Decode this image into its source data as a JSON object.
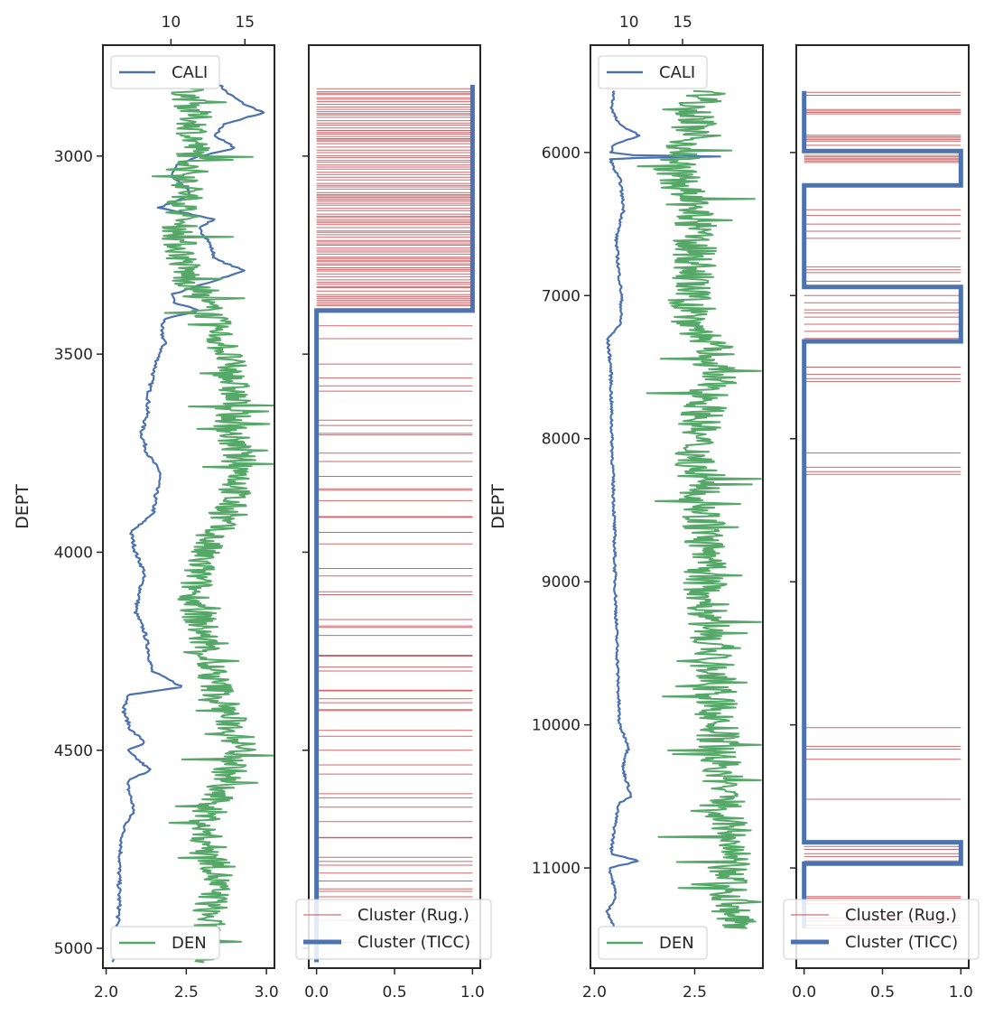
{
  "chart_data": [
    {
      "panel": "left-well-logs",
      "type": "line",
      "ylabel": "DEPT",
      "ylim": [
        5050,
        2720
      ],
      "yticks": [
        3000,
        3500,
        4000,
        4500,
        5000
      ],
      "ytick_labels": [
        "3000",
        "3500",
        "4000",
        "4500",
        "5000"
      ],
      "x_bottom": {
        "range": [
          1.98,
          3.05
        ],
        "ticks": [
          2.0,
          2.5,
          3.0
        ],
        "tick_labels": [
          "2.0",
          "2.5",
          "3.0"
        ]
      },
      "x_top": {
        "range": [
          5.4,
          17.0
        ],
        "ticks": [
          10,
          15
        ],
        "tick_labels": [
          "10",
          "15"
        ]
      },
      "depth_range": [
        2820,
        5035
      ],
      "series": [
        {
          "name": "CALI",
          "axis": "top",
          "color": "#4c72b0",
          "legend": "upper left",
          "profile": [
            [
              2820,
              13.3
            ],
            [
              2840,
              13.8
            ],
            [
              2870,
              15.0
            ],
            [
              2890,
              16.3
            ],
            [
              2920,
              13.5
            ],
            [
              2950,
              13.0
            ],
            [
              2980,
              14.4
            ],
            [
              3000,
              12.0
            ],
            [
              3020,
              10.5
            ],
            [
              3050,
              10.0
            ],
            [
              3080,
              11.0
            ],
            [
              3100,
              11.3
            ],
            [
              3130,
              9.2
            ],
            [
              3160,
              13.0
            ],
            [
              3180,
              11.8
            ],
            [
              3210,
              12.5
            ],
            [
              3260,
              13.0
            ],
            [
              3290,
              15.0
            ],
            [
              3320,
              12.5
            ],
            [
              3350,
              10.0
            ],
            [
              3370,
              10.2
            ],
            [
              3390,
              12.0
            ],
            [
              3410,
              9.6
            ],
            [
              3440,
              9.3
            ],
            [
              3470,
              9.6
            ],
            [
              3500,
              9.2
            ],
            [
              3550,
              8.8
            ],
            [
              3600,
              8.5
            ],
            [
              3650,
              8.4
            ],
            [
              3700,
              8.0
            ],
            [
              3750,
              8.4
            ],
            [
              3800,
              9.3
            ],
            [
              3850,
              9.0
            ],
            [
              3900,
              8.8
            ],
            [
              3950,
              7.3
            ],
            [
              4000,
              7.6
            ],
            [
              4050,
              8.2
            ],
            [
              4100,
              7.9
            ],
            [
              4150,
              7.6
            ],
            [
              4200,
              8.2
            ],
            [
              4250,
              8.5
            ],
            [
              4300,
              8.7
            ],
            [
              4340,
              10.8
            ],
            [
              4360,
              7.2
            ],
            [
              4400,
              6.8
            ],
            [
              4450,
              7.3
            ],
            [
              4480,
              8.3
            ],
            [
              4500,
              7.0
            ],
            [
              4550,
              8.6
            ],
            [
              4580,
              7.0
            ],
            [
              4650,
              7.5
            ],
            [
              4700,
              6.8
            ],
            [
              4750,
              6.6
            ],
            [
              4800,
              6.5
            ],
            [
              4900,
              6.5
            ],
            [
              5000,
              6.2
            ],
            [
              5030,
              6.1
            ]
          ]
        },
        {
          "name": "DEN",
          "axis": "bottom",
          "color": "#55a868",
          "legend": "lower left",
          "profile": [
            [
              2820,
              2.5
            ],
            [
              2900,
              2.55
            ],
            [
              3000,
              2.55
            ],
            [
              3100,
              2.5
            ],
            [
              3200,
              2.45
            ],
            [
              3300,
              2.5
            ],
            [
              3400,
              2.65
            ],
            [
              3500,
              2.75
            ],
            [
              3600,
              2.8
            ],
            [
              3700,
              2.78
            ],
            [
              3800,
              2.85
            ],
            [
              3900,
              2.75
            ],
            [
              4000,
              2.6
            ],
            [
              4100,
              2.55
            ],
            [
              4200,
              2.6
            ],
            [
              4300,
              2.65
            ],
            [
              4400,
              2.75
            ],
            [
              4500,
              2.85
            ],
            [
              4600,
              2.7
            ],
            [
              4700,
              2.6
            ],
            [
              4800,
              2.7
            ],
            [
              4900,
              2.65
            ],
            [
              5000,
              2.6
            ],
            [
              5035,
              2.55
            ]
          ]
        }
      ]
    },
    {
      "panel": "left-clusters",
      "type": "line",
      "ylim": [
        5050,
        2720
      ],
      "x_bottom": {
        "range": [
          -0.05,
          1.05
        ],
        "ticks": [
          0.0,
          0.5,
          1.0
        ],
        "tick_labels": [
          "0.0",
          "0.5",
          "1.0"
        ]
      },
      "series": [
        {
          "name": "Cluster (Rug.)",
          "color": "#c44e52",
          "style": "thin horizontal spikes 0 to 1",
          "bands": [
            [
              2830,
              3390,
              0.25
            ],
            [
              3390,
              5035,
              0.7
            ]
          ],
          "spikes": [
            3560,
            3580,
            3680,
            3700,
            3750,
            3840,
            3870,
            3910,
            3950,
            4060,
            4100,
            4170,
            4190,
            4210,
            4260,
            4290,
            4300,
            4350,
            4370,
            4380,
            4400,
            4450,
            4500,
            4560,
            4620,
            4680,
            4720,
            4770,
            4790,
            4810,
            4830,
            4850,
            4870
          ]
        },
        {
          "name": "Cluster (TICC)",
          "color": "#4c72b0",
          "style": "thick step",
          "steps": [
            [
              2820,
              1
            ],
            [
              3390,
              0
            ],
            [
              5035,
              0
            ]
          ]
        }
      ],
      "legend": "lower right"
    },
    {
      "panel": "right-well-logs",
      "type": "line",
      "ylabel": "DEPT",
      "ylim": [
        11700,
        5250
      ],
      "yticks": [
        6000,
        7000,
        8000,
        9000,
        10000,
        11000
      ],
      "ytick_labels": [
        "6000",
        "7000",
        "8000",
        "9000",
        "10000",
        "11000"
      ],
      "x_bottom": {
        "range": [
          1.98,
          2.84
        ],
        "ticks": [
          2.0,
          2.5
        ],
        "tick_labels": [
          "2.0",
          "2.5"
        ]
      },
      "x_top": {
        "range": [
          6.4,
          22.5
        ],
        "ticks": [
          10,
          15
        ],
        "tick_labels": [
          "10",
          "15"
        ]
      },
      "depth_range": [
        5570,
        11420
      ],
      "series": [
        {
          "name": "CALI",
          "axis": "top",
          "color": "#4c72b0",
          "legend": "upper left",
          "profile": [
            [
              5570,
              8.6
            ],
            [
              5700,
              8.4
            ],
            [
              5800,
              9.0
            ],
            [
              5880,
              11.0
            ],
            [
              5950,
              8.5
            ],
            [
              6000,
              8.3
            ],
            [
              6020,
              10.5
            ],
            [
              6030,
              20.2
            ],
            [
              6040,
              8.3
            ],
            [
              6100,
              8.5
            ],
            [
              6200,
              9.2
            ],
            [
              6400,
              9.5
            ],
            [
              6600,
              8.8
            ],
            [
              6800,
              9.0
            ],
            [
              7000,
              9.3
            ],
            [
              7200,
              9.2
            ],
            [
              7300,
              8.0
            ],
            [
              7500,
              8.3
            ],
            [
              8000,
              8.4
            ],
            [
              8500,
              8.6
            ],
            [
              9000,
              8.7
            ],
            [
              9500,
              8.9
            ],
            [
              10000,
              9.1
            ],
            [
              10150,
              10.0
            ],
            [
              10300,
              9.4
            ],
            [
              10500,
              10.2
            ],
            [
              10550,
              9.0
            ],
            [
              10800,
              8.5
            ],
            [
              10900,
              8.3
            ],
            [
              10950,
              11.0
            ],
            [
              11000,
              8.2
            ],
            [
              11200,
              8.8
            ],
            [
              11300,
              8.0
            ],
            [
              11420,
              8.6
            ]
          ]
        },
        {
          "name": "DEN",
          "axis": "bottom",
          "color": "#55a868",
          "legend": "lower left",
          "profile": [
            [
              5570,
              2.55
            ],
            [
              5800,
              2.5
            ],
            [
              6000,
              2.45
            ],
            [
              6100,
              2.4
            ],
            [
              6300,
              2.45
            ],
            [
              6500,
              2.5
            ],
            [
              6800,
              2.5
            ],
            [
              7000,
              2.47
            ],
            [
              7200,
              2.5
            ],
            [
              7400,
              2.6
            ],
            [
              7600,
              2.6
            ],
            [
              7800,
              2.55
            ],
            [
              8000,
              2.5
            ],
            [
              8300,
              2.52
            ],
            [
              8600,
              2.55
            ],
            [
              9000,
              2.55
            ],
            [
              9400,
              2.58
            ],
            [
              9800,
              2.6
            ],
            [
              10200,
              2.62
            ],
            [
              10500,
              2.65
            ],
            [
              10800,
              2.68
            ],
            [
              11000,
              2.66
            ],
            [
              11200,
              2.68
            ],
            [
              11420,
              2.7
            ]
          ]
        }
      ]
    },
    {
      "panel": "right-clusters",
      "type": "line",
      "ylim": [
        11700,
        5250
      ],
      "x_bottom": {
        "range": [
          -0.05,
          1.05
        ],
        "ticks": [
          0.0,
          0.5,
          1.0
        ],
        "tick_labels": [
          "0.0",
          "0.5",
          "1.0"
        ]
      },
      "series": [
        {
          "name": "Cluster (Rug.)",
          "color": "#c44e52",
          "style": "thin horizontal spikes 0 to 1",
          "spikes": [
            5580,
            5600,
            5700,
            5710,
            5720,
            5730,
            5880,
            5890,
            5900,
            5910,
            5920,
            5950,
            6020,
            6030,
            6040,
            6050,
            6060,
            6070,
            6400,
            6440,
            6500,
            6550,
            6600,
            6800,
            6820,
            6840,
            6900,
            7000,
            7050,
            7100,
            7120,
            7150,
            7200,
            7250,
            7300,
            7500,
            7550,
            7580,
            7600,
            8100,
            8200,
            8230,
            8250,
            10020,
            10150,
            10170,
            10240,
            10520,
            10850,
            10870,
            10900,
            10920,
            10950,
            11200,
            11210,
            11230,
            11250,
            11350,
            11370,
            11400,
            11420
          ]
        },
        {
          "name": "Cluster (TICC)",
          "color": "#4c72b0",
          "style": "thick step",
          "steps": [
            [
              5570,
              0
            ],
            [
              5990,
              1
            ],
            [
              6230,
              0
            ],
            [
              6940,
              1
            ],
            [
              7320,
              0
            ],
            [
              10820,
              1
            ],
            [
              10970,
              0
            ],
            [
              11420,
              0
            ]
          ]
        }
      ],
      "legend": "lower right"
    }
  ],
  "legends": {
    "left_top": "CALI",
    "left_bottom": "DEN",
    "left_cluster_rug": "Cluster (Rug.)",
    "left_cluster_ticc": "Cluster (TICC)",
    "right_top": "CALI",
    "right_bottom": "DEN",
    "right_cluster_rug": "Cluster (Rug.)",
    "right_cluster_ticc": "Cluster (TICC)"
  },
  "axis_labels": {
    "left_y": "DEPT",
    "right_y": "DEPT"
  },
  "colors": {
    "cali": "#4c72b0",
    "den": "#55a868",
    "rug": "#c44e52",
    "ticc": "#4c72b0",
    "frame": "#262626"
  }
}
